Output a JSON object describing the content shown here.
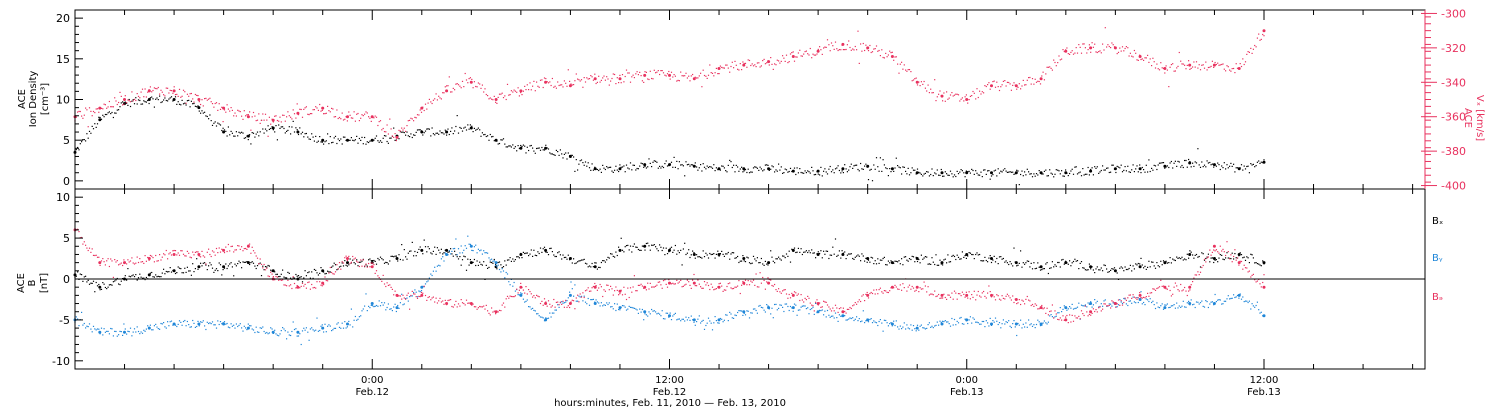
{
  "chart_data": [
    {
      "type": "scatter",
      "panel": "top",
      "ylabel_lines": [
        "ACE",
        "Ion Density",
        "[cm⁻³]"
      ],
      "y_ticks": [
        "0",
        "5",
        "10",
        "15",
        "20"
      ],
      "ylim": [
        -1,
        21
      ],
      "y2label_lines": [
        "ACE",
        "Vₓ [km/s]"
      ],
      "y2_ticks": [
        "-400",
        "-380",
        "-360",
        "-340",
        "-320",
        "-300"
      ],
      "y2lim": [
        -402,
        -298
      ],
      "series": [
        {
          "name": "Ion Density",
          "axis": "left",
          "color": "#000000",
          "x": [
            0,
            1,
            2,
            3,
            4,
            5,
            6,
            7,
            8,
            9,
            10,
            11,
            12,
            13,
            14,
            15,
            16,
            17,
            18,
            19,
            20,
            21,
            22,
            23,
            24,
            25,
            26,
            27,
            28,
            29,
            30,
            31,
            32,
            33,
            34,
            35,
            36,
            37,
            38,
            39,
            40,
            41,
            42,
            43,
            44,
            45,
            46,
            47,
            48
          ],
          "values": [
            3.5,
            7.5,
            9.5,
            10,
            10,
            9,
            6,
            5.5,
            6.5,
            6,
            5,
            5,
            5,
            5.5,
            6,
            6,
            6.5,
            5,
            4,
            4,
            3,
            1.5,
            1.5,
            2,
            2,
            1.8,
            1.5,
            1.5,
            1.5,
            1.2,
            1.2,
            1.5,
            1.8,
            1.5,
            1,
            1,
            1,
            1,
            1,
            1,
            1,
            1.2,
            1.5,
            1.5,
            1.8,
            2.2,
            2,
            1.5,
            2.3
          ]
        },
        {
          "name": "Vx",
          "axis": "right",
          "color": "#e8315e",
          "x": [
            0,
            1,
            2,
            3,
            4,
            5,
            6,
            7,
            8,
            9,
            10,
            11,
            12,
            13,
            14,
            15,
            16,
            17,
            18,
            19,
            20,
            21,
            22,
            23,
            24,
            25,
            26,
            27,
            28,
            29,
            30,
            31,
            32,
            33,
            34,
            35,
            36,
            37,
            38,
            39,
            40,
            41,
            42,
            43,
            44,
            45,
            46,
            47,
            48
          ],
          "values": [
            -360,
            -355,
            -350,
            -345,
            -345,
            -350,
            -355,
            -360,
            -362,
            -358,
            -355,
            -360,
            -360,
            -372,
            -355,
            -345,
            -340,
            -350,
            -345,
            -340,
            -342,
            -338,
            -338,
            -336,
            -336,
            -338,
            -332,
            -330,
            -328,
            -325,
            -322,
            -318,
            -320,
            -325,
            -340,
            -348,
            -350,
            -342,
            -342,
            -338,
            -322,
            -320,
            -320,
            -325,
            -332,
            -330,
            -330,
            -332,
            -310
          ]
        }
      ]
    },
    {
      "type": "scatter",
      "panel": "bottom",
      "ylabel_lines": [
        "ACE",
        "B",
        "[nT]"
      ],
      "y_ticks": [
        "-10",
        "-5",
        "0",
        "5",
        "10"
      ],
      "ylim": [
        -11,
        11
      ],
      "zero_line": true,
      "series": [
        {
          "name": "Bₓ",
          "color": "#000000",
          "x": [
            0,
            1,
            2,
            3,
            4,
            5,
            6,
            7,
            8,
            9,
            10,
            11,
            12,
            13,
            14,
            15,
            16,
            17,
            18,
            19,
            20,
            21,
            22,
            23,
            24,
            25,
            26,
            27,
            28,
            29,
            30,
            31,
            32,
            33,
            34,
            35,
            36,
            37,
            38,
            39,
            40,
            41,
            42,
            43,
            44,
            45,
            46,
            47,
            48
          ],
          "values": [
            0.5,
            -1,
            0,
            0.5,
            1,
            1.5,
            1.5,
            2,
            1,
            0,
            1,
            2,
            2,
            2.5,
            3.5,
            3.5,
            2,
            1.5,
            3,
            3.5,
            2.5,
            1.5,
            3.5,
            4,
            3.5,
            3,
            3,
            2.5,
            2,
            3.5,
            3,
            3,
            2.5,
            2,
            2.5,
            2,
            3,
            2.5,
            2,
            1.5,
            2,
            1.5,
            1,
            1.5,
            2,
            3,
            2.5,
            3,
            2
          ]
        },
        {
          "name": "Bᵧ",
          "color": "#1f86d8",
          "x": [
            0,
            1,
            2,
            3,
            4,
            5,
            6,
            7,
            8,
            9,
            10,
            11,
            12,
            13,
            14,
            15,
            16,
            17,
            18,
            19,
            20,
            21,
            22,
            23,
            24,
            25,
            26,
            27,
            28,
            29,
            30,
            31,
            32,
            33,
            34,
            35,
            36,
            37,
            38,
            39,
            40,
            41,
            42,
            43,
            44,
            45,
            46,
            47,
            48
          ],
          "values": [
            -5,
            -6.5,
            -6.5,
            -6,
            -5.5,
            -5.5,
            -5.5,
            -6,
            -6.5,
            -6.5,
            -6,
            -5.5,
            -3,
            -3.5,
            -1,
            3,
            4,
            2,
            -2,
            -5,
            -2,
            -3,
            -3.5,
            -4,
            -4.5,
            -5,
            -5,
            -4,
            -3.5,
            -3.5,
            -4,
            -4.5,
            -5,
            -5.5,
            -6,
            -5.5,
            -5,
            -5.5,
            -5.5,
            -5.5,
            -3.5,
            -3,
            -3,
            -2.5,
            -3.5,
            -3,
            -3,
            -2,
            -4.5
          ]
        },
        {
          "name": "Bₔ",
          "color": "#e8315e",
          "x": [
            0,
            1,
            2,
            3,
            4,
            5,
            6,
            7,
            8,
            9,
            10,
            11,
            12,
            13,
            14,
            15,
            16,
            17,
            18,
            19,
            20,
            21,
            22,
            23,
            24,
            25,
            26,
            27,
            28,
            29,
            30,
            31,
            32,
            33,
            34,
            35,
            36,
            37,
            38,
            39,
            40,
            41,
            42,
            43,
            44,
            45,
            46,
            47,
            48
          ],
          "values": [
            6,
            2,
            2,
            2.5,
            3,
            3,
            3.5,
            4,
            0,
            -1,
            -0.5,
            2.5,
            1.5,
            -2,
            -2,
            -3,
            -3,
            -4,
            -1,
            -3,
            -3,
            -1,
            -1.5,
            -1,
            -0.5,
            -0.5,
            -1,
            -0.5,
            -0.5,
            -2,
            -3,
            -4,
            -2,
            -1,
            -1,
            -2,
            -2,
            -2,
            -2.5,
            -3.5,
            -5,
            -4,
            -3,
            -2,
            -1,
            -1,
            4,
            2,
            -1
          ]
        }
      ]
    }
  ],
  "x_axis": {
    "ticks": [
      {
        "hour": 12,
        "label": "0:00",
        "sublabel": "Feb.12"
      },
      {
        "hour": 24,
        "label": "12:00",
        "sublabel": "Feb.12"
      },
      {
        "hour": 36,
        "label": "0:00",
        "sublabel": "Feb.13"
      },
      {
        "hour": 48,
        "label": "12:00",
        "sublabel": "Feb.13"
      }
    ],
    "range_hours": [
      0,
      54.5
    ],
    "minor_tick_hours": 2,
    "label": "hours:minutes, Feb. 11, 2010 — Feb. 13, 2010"
  },
  "legend": [
    {
      "text": "Bₓ",
      "color": "#000000"
    },
    {
      "text": "Bᵧ",
      "color": "#1f86d8"
    },
    {
      "text": "Bₔ",
      "color": "#e8315e"
    }
  ]
}
